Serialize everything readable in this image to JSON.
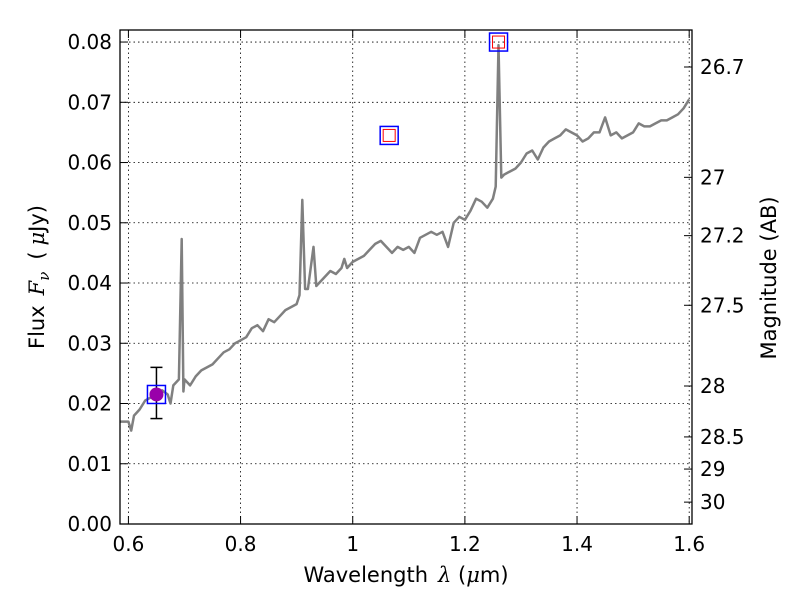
{
  "chart_data": {
    "type": "line",
    "title": "",
    "xlabel": {
      "prefix": "Wavelength",
      "symbol": "λ",
      "unit_open": " (",
      "unit_mu": "μ",
      "unit_rest": "m)"
    },
    "ylabel": {
      "prefix": "Flux",
      "symbol": "F",
      "subscript": "ν",
      "unit_open": "(",
      "unit_mu": "μ",
      "unit_rest": "Jy)"
    },
    "y2label": "Magnitude (AB)",
    "xlim": [
      0.585,
      1.605
    ],
    "ylim": [
      0.0,
      0.082
    ],
    "grid": true,
    "x_ticks": [
      {
        "value": 0.6,
        "label": "0.6"
      },
      {
        "value": 0.8,
        "label": "0.8"
      },
      {
        "value": 1.0,
        "label": "1"
      },
      {
        "value": 1.2,
        "label": "1.2"
      },
      {
        "value": 1.4,
        "label": "1.4"
      },
      {
        "value": 1.6,
        "label": "1.6"
      }
    ],
    "y_ticks": [
      {
        "value": 0.0,
        "label": "0.00"
      },
      {
        "value": 0.01,
        "label": "0.01"
      },
      {
        "value": 0.02,
        "label": "0.02"
      },
      {
        "value": 0.03,
        "label": "0.03"
      },
      {
        "value": 0.04,
        "label": "0.04"
      },
      {
        "value": 0.05,
        "label": "0.05"
      },
      {
        "value": 0.06,
        "label": "0.06"
      },
      {
        "value": 0.07,
        "label": "0.07"
      },
      {
        "value": 0.08,
        "label": "0.08"
      }
    ],
    "y2_ticks": [
      {
        "mag": 26.7,
        "label": "26.7"
      },
      {
        "mag": 27.0,
        "label": "27"
      },
      {
        "mag": 27.2,
        "label": "27.2"
      },
      {
        "mag": 27.5,
        "label": "27.5"
      },
      {
        "mag": 28.0,
        "label": "28"
      },
      {
        "mag": 28.5,
        "label": "28.5"
      },
      {
        "mag": 29.0,
        "label": "29"
      },
      {
        "mag": 30.0,
        "label": "30"
      }
    ],
    "series": [
      {
        "color": "#808080",
        "x": [
          0.585,
          0.6,
          0.605,
          0.61,
          0.62,
          0.63,
          0.64,
          0.65,
          0.66,
          0.67,
          0.675,
          0.68,
          0.685,
          0.69,
          0.695,
          0.698,
          0.7,
          0.705,
          0.71,
          0.72,
          0.73,
          0.74,
          0.75,
          0.76,
          0.77,
          0.78,
          0.79,
          0.8,
          0.81,
          0.82,
          0.83,
          0.84,
          0.85,
          0.86,
          0.87,
          0.88,
          0.89,
          0.9,
          0.905,
          0.91,
          0.915,
          0.92,
          0.93,
          0.935,
          0.94,
          0.95,
          0.96,
          0.97,
          0.98,
          0.985,
          0.99,
          1.0,
          1.01,
          1.02,
          1.03,
          1.04,
          1.05,
          1.06,
          1.07,
          1.08,
          1.09,
          1.1,
          1.11,
          1.12,
          1.13,
          1.14,
          1.15,
          1.16,
          1.17,
          1.18,
          1.19,
          1.2,
          1.21,
          1.22,
          1.23,
          1.24,
          1.25,
          1.255,
          1.26,
          1.265,
          1.27,
          1.28,
          1.29,
          1.3,
          1.31,
          1.32,
          1.33,
          1.34,
          1.35,
          1.36,
          1.37,
          1.38,
          1.39,
          1.4,
          1.41,
          1.42,
          1.43,
          1.44,
          1.45,
          1.46,
          1.47,
          1.48,
          1.49,
          1.5,
          1.51,
          1.52,
          1.53,
          1.54,
          1.55,
          1.56,
          1.57,
          1.58,
          1.59,
          1.6
        ],
        "y": [
          0.017,
          0.017,
          0.0155,
          0.018,
          0.019,
          0.0205,
          0.021,
          0.021,
          0.0222,
          0.0215,
          0.02,
          0.023,
          0.0235,
          0.024,
          0.0473,
          0.022,
          0.024,
          0.0235,
          0.023,
          0.0245,
          0.0255,
          0.026,
          0.0265,
          0.0275,
          0.0285,
          0.029,
          0.03,
          0.0305,
          0.031,
          0.0325,
          0.033,
          0.032,
          0.034,
          0.0335,
          0.0345,
          0.0355,
          0.036,
          0.0365,
          0.038,
          0.0538,
          0.039,
          0.039,
          0.046,
          0.0395,
          0.04,
          0.041,
          0.042,
          0.0415,
          0.0425,
          0.044,
          0.0425,
          0.0435,
          0.044,
          0.0445,
          0.0455,
          0.0465,
          0.047,
          0.046,
          0.045,
          0.046,
          0.0455,
          0.046,
          0.045,
          0.0475,
          0.048,
          0.0485,
          0.048,
          0.0485,
          0.046,
          0.05,
          0.051,
          0.0505,
          0.052,
          0.054,
          0.0535,
          0.0525,
          0.054,
          0.056,
          0.0795,
          0.0575,
          0.058,
          0.0585,
          0.059,
          0.06,
          0.0615,
          0.062,
          0.0605,
          0.0625,
          0.0635,
          0.064,
          0.0645,
          0.0655,
          0.065,
          0.0645,
          0.0635,
          0.064,
          0.065,
          0.065,
          0.0675,
          0.0645,
          0.065,
          0.064,
          0.0645,
          0.065,
          0.0665,
          0.066,
          0.066,
          0.0665,
          0.067,
          0.067,
          0.0675,
          0.068,
          0.069,
          0.0705
        ]
      }
    ],
    "photometry": [
      {
        "x": 0.65,
        "y": 0.0215,
        "yerr_low": 0.0175,
        "yerr_high": 0.026,
        "marker": "square-filled-circle",
        "edge": "#0000ff",
        "fill": "#9900aa"
      },
      {
        "x": 1.065,
        "y": 0.0645,
        "marker": "square-open",
        "edge": "#0000ff",
        "inner": "#ff0000"
      },
      {
        "x": 1.26,
        "y": 0.08,
        "marker": "square-open",
        "edge": "#0000ff",
        "inner": "#ff0000"
      }
    ]
  }
}
